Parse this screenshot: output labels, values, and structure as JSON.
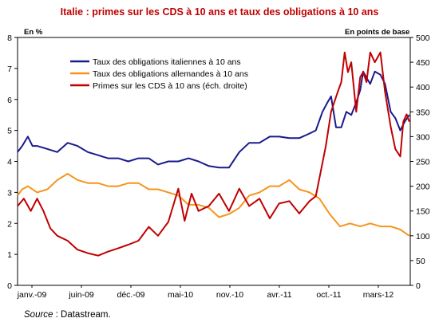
{
  "title": "Italie : primes sur les CDS à 10 ans et taux des obligations à 10 ans",
  "units": {
    "left": "En %",
    "right": "En points de base"
  },
  "source": {
    "prefix": "Source",
    "text": " : Datastream."
  },
  "colors": {
    "italy": "#1a1a8c",
    "germany": "#f7941d",
    "cds": "#c00000",
    "frame": "#000000"
  },
  "chart_data": {
    "type": "line",
    "title": "Italie : primes sur les CDS à 10 ans et taux des obligations à 10 ans",
    "x_tick_labels": [
      "janv.-09",
      "juin-09",
      "déc.-09",
      "mai-10",
      "nov.-10",
      "avr.-11",
      "oct.-11",
      "mars-12"
    ],
    "x_range": [
      "2009-01",
      "2012-03"
    ],
    "y_left": {
      "label": "En %",
      "range": [
        0,
        8
      ],
      "ticks": [
        0,
        1,
        2,
        3,
        4,
        5,
        6,
        7,
        8
      ]
    },
    "y_right": {
      "label": "En points de base",
      "range": [
        0,
        500
      ],
      "ticks": [
        0,
        50,
        100,
        150,
        200,
        250,
        300,
        350,
        400,
        450,
        500
      ]
    },
    "legend_position": "top-left",
    "grid": false,
    "series": [
      {
        "name": "Taux des obligations italiennes à 10 ans",
        "axis": "left",
        "color": "#1a1a8c",
        "points": [
          [
            "2009-01-01",
            4.3
          ],
          [
            "2009-01-15",
            4.5
          ],
          [
            "2009-02-01",
            4.8
          ],
          [
            "2009-02-15",
            4.5
          ],
          [
            "2009-03-01",
            4.5
          ],
          [
            "2009-04-01",
            4.4
          ],
          [
            "2009-05-01",
            4.3
          ],
          [
            "2009-06-01",
            4.6
          ],
          [
            "2009-07-01",
            4.5
          ],
          [
            "2009-08-01",
            4.3
          ],
          [
            "2009-09-01",
            4.2
          ],
          [
            "2009-10-01",
            4.1
          ],
          [
            "2009-11-01",
            4.1
          ],
          [
            "2009-12-01",
            4.0
          ],
          [
            "2010-01-01",
            4.1
          ],
          [
            "2010-02-01",
            4.1
          ],
          [
            "2010-03-01",
            3.9
          ],
          [
            "2010-04-01",
            4.0
          ],
          [
            "2010-05-01",
            4.0
          ],
          [
            "2010-06-01",
            4.1
          ],
          [
            "2010-07-01",
            4.0
          ],
          [
            "2010-08-01",
            3.85
          ],
          [
            "2010-09-01",
            3.8
          ],
          [
            "2010-10-01",
            3.8
          ],
          [
            "2010-11-01",
            4.3
          ],
          [
            "2010-12-01",
            4.6
          ],
          [
            "2011-01-01",
            4.6
          ],
          [
            "2011-02-01",
            4.8
          ],
          [
            "2011-03-01",
            4.8
          ],
          [
            "2011-04-01",
            4.75
          ],
          [
            "2011-05-01",
            4.75
          ],
          [
            "2011-06-01",
            4.9
          ],
          [
            "2011-06-20",
            5.0
          ],
          [
            "2011-07-10",
            5.6
          ],
          [
            "2011-07-25",
            5.9
          ],
          [
            "2011-08-05",
            6.1
          ],
          [
            "2011-08-20",
            5.1
          ],
          [
            "2011-09-05",
            5.1
          ],
          [
            "2011-09-20",
            5.6
          ],
          [
            "2011-10-05",
            5.5
          ],
          [
            "2011-10-20",
            5.9
          ],
          [
            "2011-11-01",
            6.3
          ],
          [
            "2011-11-10",
            6.9
          ],
          [
            "2011-11-20",
            6.7
          ],
          [
            "2011-12-01",
            6.5
          ],
          [
            "2011-12-15",
            6.9
          ],
          [
            "2012-01-01",
            6.8
          ],
          [
            "2012-01-15",
            6.5
          ],
          [
            "2012-02-01",
            5.6
          ],
          [
            "2012-02-15",
            5.4
          ],
          [
            "2012-03-01",
            5.0
          ],
          [
            "2012-03-15",
            5.3
          ],
          [
            "2012-03-28",
            5.5
          ]
        ]
      },
      {
        "name": "Taux des obligations allemandes à 10 ans",
        "axis": "left",
        "color": "#f7941d",
        "points": [
          [
            "2009-01-01",
            2.9
          ],
          [
            "2009-01-15",
            3.1
          ],
          [
            "2009-02-01",
            3.2
          ],
          [
            "2009-03-01",
            3.0
          ],
          [
            "2009-04-01",
            3.1
          ],
          [
            "2009-05-01",
            3.4
          ],
          [
            "2009-06-01",
            3.6
          ],
          [
            "2009-07-01",
            3.4
          ],
          [
            "2009-08-01",
            3.3
          ],
          [
            "2009-09-01",
            3.3
          ],
          [
            "2009-10-01",
            3.2
          ],
          [
            "2009-11-01",
            3.2
          ],
          [
            "2009-12-01",
            3.3
          ],
          [
            "2010-01-01",
            3.3
          ],
          [
            "2010-02-01",
            3.1
          ],
          [
            "2010-03-01",
            3.1
          ],
          [
            "2010-04-01",
            3.0
          ],
          [
            "2010-05-01",
            2.9
          ],
          [
            "2010-06-01",
            2.6
          ],
          [
            "2010-07-01",
            2.6
          ],
          [
            "2010-08-01",
            2.5
          ],
          [
            "2010-09-01",
            2.2
          ],
          [
            "2010-10-01",
            2.3
          ],
          [
            "2010-11-01",
            2.5
          ],
          [
            "2010-12-01",
            2.9
          ],
          [
            "2011-01-01",
            3.0
          ],
          [
            "2011-02-01",
            3.2
          ],
          [
            "2011-03-01",
            3.2
          ],
          [
            "2011-04-01",
            3.4
          ],
          [
            "2011-05-01",
            3.1
          ],
          [
            "2011-06-01",
            3.0
          ],
          [
            "2011-07-01",
            2.8
          ],
          [
            "2011-08-01",
            2.3
          ],
          [
            "2011-09-01",
            1.9
          ],
          [
            "2011-10-01",
            2.0
          ],
          [
            "2011-11-01",
            1.9
          ],
          [
            "2011-12-01",
            2.0
          ],
          [
            "2012-01-01",
            1.9
          ],
          [
            "2012-02-01",
            1.9
          ],
          [
            "2012-03-01",
            1.8
          ],
          [
            "2012-03-28",
            1.6
          ]
        ]
      },
      {
        "name": "Primes sur les CDS à 10 ans (éch. droite)",
        "axis": "right",
        "color": "#c00000",
        "points": [
          [
            "2009-01-01",
            160
          ],
          [
            "2009-01-20",
            175
          ],
          [
            "2009-02-10",
            150
          ],
          [
            "2009-03-01",
            175
          ],
          [
            "2009-03-20",
            150
          ],
          [
            "2009-04-10",
            115
          ],
          [
            "2009-05-01",
            100
          ],
          [
            "2009-06-01",
            90
          ],
          [
            "2009-07-01",
            72
          ],
          [
            "2009-08-01",
            65
          ],
          [
            "2009-09-01",
            60
          ],
          [
            "2009-10-01",
            68
          ],
          [
            "2009-11-01",
            75
          ],
          [
            "2009-12-01",
            82
          ],
          [
            "2010-01-01",
            90
          ],
          [
            "2010-02-01",
            118
          ],
          [
            "2010-03-01",
            100
          ],
          [
            "2010-04-01",
            128
          ],
          [
            "2010-05-01",
            195
          ],
          [
            "2010-05-20",
            130
          ],
          [
            "2010-06-10",
            185
          ],
          [
            "2010-07-01",
            150
          ],
          [
            "2010-08-01",
            160
          ],
          [
            "2010-09-01",
            185
          ],
          [
            "2010-10-01",
            150
          ],
          [
            "2010-11-01",
            195
          ],
          [
            "2010-12-01",
            160
          ],
          [
            "2011-01-01",
            175
          ],
          [
            "2011-02-01",
            135
          ],
          [
            "2011-03-01",
            165
          ],
          [
            "2011-04-01",
            170
          ],
          [
            "2011-05-01",
            145
          ],
          [
            "2011-06-01",
            170
          ],
          [
            "2011-06-20",
            180
          ],
          [
            "2011-07-05",
            230
          ],
          [
            "2011-07-20",
            280
          ],
          [
            "2011-08-05",
            350
          ],
          [
            "2011-08-15",
            370
          ],
          [
            "2011-08-25",
            390
          ],
          [
            "2011-09-05",
            410
          ],
          [
            "2011-09-15",
            470
          ],
          [
            "2011-09-25",
            430
          ],
          [
            "2011-10-05",
            450
          ],
          [
            "2011-10-20",
            350
          ],
          [
            "2011-11-01",
            420
          ],
          [
            "2011-11-10",
            430
          ],
          [
            "2011-11-20",
            410
          ],
          [
            "2011-12-01",
            470
          ],
          [
            "2011-12-15",
            450
          ],
          [
            "2012-01-01",
            470
          ],
          [
            "2012-01-15",
            390
          ],
          [
            "2012-02-01",
            320
          ],
          [
            "2012-02-15",
            275
          ],
          [
            "2012-03-01",
            260
          ],
          [
            "2012-03-10",
            330
          ],
          [
            "2012-03-20",
            345
          ],
          [
            "2012-03-28",
            330
          ]
        ]
      }
    ]
  }
}
